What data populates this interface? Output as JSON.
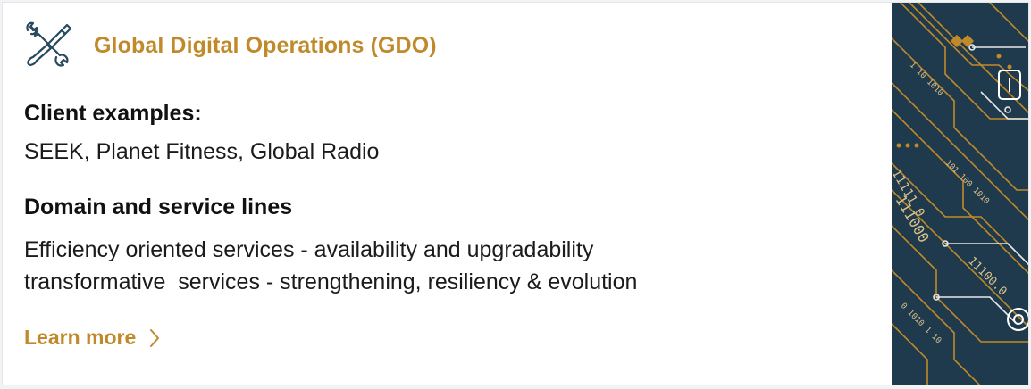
{
  "card": {
    "icon": "tools-icon",
    "title": "Global Digital Operations (GDO)",
    "client_heading": "Client examples:",
    "clients": "SEEK, Planet Fitness, Global Radio",
    "domain_heading": "Domain and service lines",
    "domain_line1": "Efficiency oriented services - availability and upgradability",
    "domain_line2": "transformative  services - strengthening, resiliency & evolution",
    "learn_more": "Learn more",
    "learn_more_icon": "chevron-right-icon"
  },
  "art": {
    "binary_text": [
      "1 10 1010",
      "11111 0",
      "111000",
      "101 100 1010",
      "11100.0",
      "0 1010 1 10"
    ]
  },
  "colors": {
    "accent": "#c08a2a",
    "icon_stroke": "#274a5e",
    "art_background": "#1f3a4d",
    "art_lines": "#c08a2a"
  }
}
